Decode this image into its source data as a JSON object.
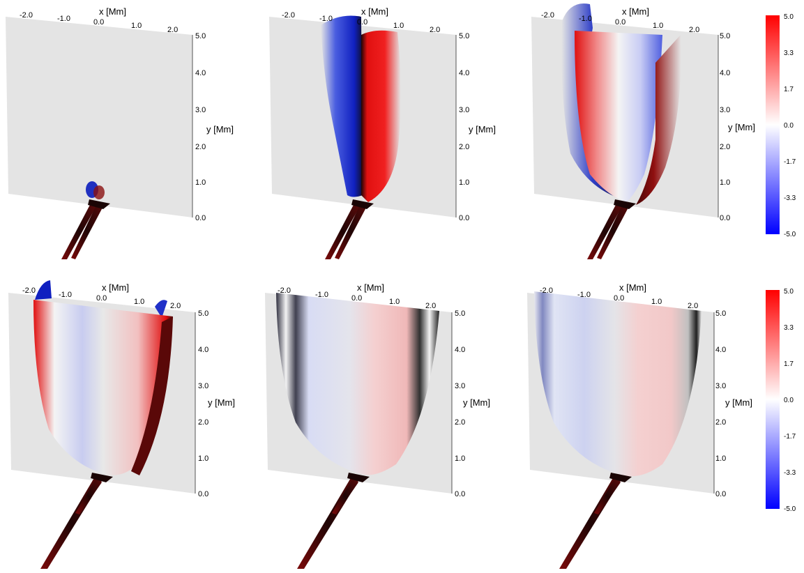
{
  "panels": [
    {
      "id": "p1",
      "x_label": "x [Mm]",
      "y_label": "y [Mm]"
    },
    {
      "id": "p2",
      "x_label": "x [Mm]",
      "y_label": "y [Mm]"
    },
    {
      "id": "p3",
      "x_label": "x [Mm]",
      "y_label": "y [Mm]"
    },
    {
      "id": "p4",
      "x_label": "x [Mm]",
      "y_label": "y [Mm]"
    },
    {
      "id": "p5",
      "x_label": "x [Mm]",
      "y_label": "y [Mm]"
    },
    {
      "id": "p6",
      "x_label": "x [Mm]",
      "y_label": "y [Mm]"
    }
  ],
  "x_ticks": [
    "-2.0",
    "-1.0",
    "0.0",
    "1.0",
    "2.0"
  ],
  "y_ticks": [
    "5.0",
    "4.0",
    "3.0",
    "2.0",
    "1.0",
    "0.0"
  ],
  "colorbar": {
    "ticks": [
      "5.0",
      "3.3",
      "1.7",
      "0.0",
      "-1.7",
      "-3.3",
      "-5.0"
    ],
    "colors": {
      "max": "#ff0000",
      "zero": "#ffffff",
      "min": "#0000ff"
    }
  },
  "colors": {
    "plane": "#e4e4e4",
    "dark_structure": "#200808"
  }
}
